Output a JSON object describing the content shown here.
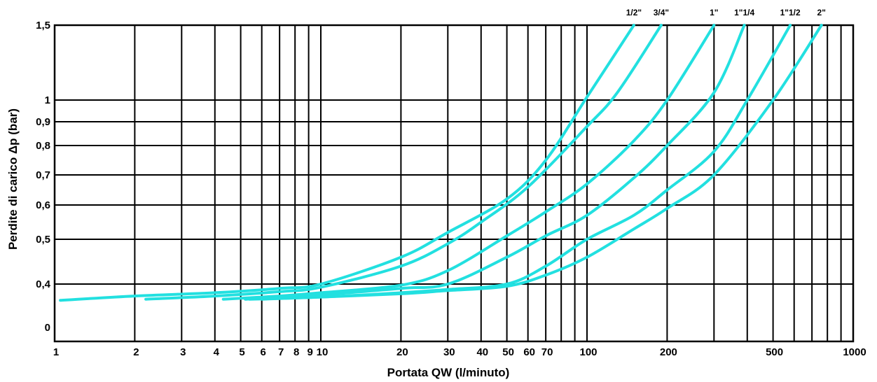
{
  "chart_data": {
    "type": "line",
    "title": "",
    "xlabel": "Portata QW (l/minuto)",
    "ylabel": "Perdite di carico Δp (bar)",
    "x_scale": "log",
    "xlim": [
      1,
      1000
    ],
    "ylim": [
      0,
      1.5
    ],
    "grid": true,
    "legend": "series labels printed above the top-right end of each curve",
    "line_color": "#22e0e0",
    "x_ticks": [
      {
        "value": 1,
        "label": "1"
      },
      {
        "value": 2,
        "label": "2"
      },
      {
        "value": 3,
        "label": "3"
      },
      {
        "value": 4,
        "label": "4"
      },
      {
        "value": 5,
        "label": "5"
      },
      {
        "value": 6,
        "label": "6"
      },
      {
        "value": 7,
        "label": "7"
      },
      {
        "value": 8,
        "label": "8"
      },
      {
        "value": 9,
        "label": "9"
      },
      {
        "value": 10,
        "label": "10"
      },
      {
        "value": 20,
        "label": "20"
      },
      {
        "value": 30,
        "label": "30"
      },
      {
        "value": 40,
        "label": "40"
      },
      {
        "value": 50,
        "label": "50"
      },
      {
        "value": 60,
        "label": "60"
      },
      {
        "value": 70,
        "label": "70"
      },
      {
        "value": 100,
        "label": "100"
      },
      {
        "value": 200,
        "label": "200"
      },
      {
        "value": 500,
        "label": "500"
      },
      {
        "value": 1000,
        "label": "1000"
      }
    ],
    "x_grid": [
      2,
      3,
      4,
      5,
      6,
      7,
      8,
      9,
      10,
      20,
      30,
      40,
      50,
      60,
      70,
      80,
      90,
      100,
      200,
      300,
      400,
      500,
      600,
      700,
      800,
      900
    ],
    "y_ticks": [
      {
        "value": 0,
        "label": "0"
      },
      {
        "value": 0.4,
        "label": "0,4"
      },
      {
        "value": 0.5,
        "label": "0,5"
      },
      {
        "value": 0.6,
        "label": "0,6"
      },
      {
        "value": 0.7,
        "label": "0,7"
      },
      {
        "value": 0.8,
        "label": "0,8"
      },
      {
        "value": 0.9,
        "label": "0,9"
      },
      {
        "value": 1,
        "label": "1"
      },
      {
        "value": 1.5,
        "label": "1,5"
      }
    ],
    "y_grid": [
      0.4,
      0.5,
      0.6,
      0.7,
      0.8,
      0.9,
      1
    ],
    "series": [
      {
        "name": "1/2\"",
        "x": [
          1.05,
          2,
          4,
          7,
          10,
          20,
          30,
          50,
          70,
          100,
          150
        ],
        "y": [
          0.25,
          0.29,
          0.32,
          0.36,
          0.4,
          0.46,
          0.52,
          0.62,
          0.75,
          1.02,
          1.5
        ]
      },
      {
        "name": "3/4\"",
        "x": [
          2.2,
          4,
          7,
          10,
          20,
          30,
          40,
          60,
          100,
          130,
          190
        ],
        "y": [
          0.26,
          0.29,
          0.33,
          0.37,
          0.44,
          0.49,
          0.55,
          0.66,
          0.88,
          1.05,
          1.5
        ]
      },
      {
        "name": "1\"",
        "x": [
          4.3,
          7,
          10,
          20,
          30,
          50,
          70,
          100,
          150,
          200,
          300
        ],
        "y": [
          0.26,
          0.29,
          0.32,
          0.39,
          0.43,
          0.51,
          0.58,
          0.67,
          0.82,
          1.0,
          1.5
        ]
      },
      {
        "name": "1\"1/4",
        "x": [
          5.2,
          10,
          20,
          30,
          50,
          70,
          100,
          150,
          200,
          300,
          390
        ],
        "y": [
          0.26,
          0.3,
          0.36,
          0.4,
          0.46,
          0.51,
          0.57,
          0.69,
          0.8,
          1.05,
          1.5
        ]
      },
      {
        "name": "1\"1/2",
        "x": [
          5.4,
          10,
          20,
          30,
          50,
          70,
          100,
          150,
          200,
          300,
          400,
          580
        ],
        "y": [
          0.26,
          0.28,
          0.32,
          0.35,
          0.4,
          0.44,
          0.5,
          0.57,
          0.65,
          0.78,
          1.0,
          1.5
        ]
      },
      {
        "name": "2\"",
        "x": [
          6,
          10,
          20,
          30,
          50,
          70,
          100,
          150,
          200,
          300,
          500,
          760
        ],
        "y": [
          0.26,
          0.28,
          0.31,
          0.34,
          0.38,
          0.42,
          0.46,
          0.53,
          0.59,
          0.7,
          1.0,
          1.5
        ]
      }
    ]
  }
}
